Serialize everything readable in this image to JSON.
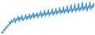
{
  "chart_data": {
    "type": "line",
    "x": [
      1,
      2,
      3,
      4,
      5,
      6,
      7,
      8,
      9,
      10,
      11,
      12,
      13,
      14,
      15,
      16,
      17,
      18,
      19,
      20,
      21,
      22,
      23,
      24,
      25,
      26,
      27,
      28,
      29,
      30,
      31,
      32,
      33,
      34,
      35,
      36,
      37,
      38,
      39,
      40,
      41,
      42,
      43,
      44,
      45,
      46,
      47,
      48,
      49,
      50,
      51,
      52,
      53,
      54,
      55,
      56,
      57,
      58,
      59,
      60,
      61,
      62,
      63,
      64,
      65,
      66,
      67,
      68,
      69,
      70,
      71,
      72,
      73,
      74,
      75,
      76,
      77,
      78,
      79,
      80,
      81,
      82,
      83,
      84,
      85,
      86,
      87,
      88,
      89,
      90,
      91,
      92,
      93,
      94,
      95,
      96,
      97,
      98,
      99,
      100
    ],
    "values": [
      5,
      10,
      8,
      18,
      15,
      25,
      22,
      30,
      28,
      40,
      33,
      45,
      38,
      42,
      50,
      36,
      48,
      44,
      55,
      40,
      52,
      46,
      58,
      42,
      50,
      48,
      60,
      45,
      55,
      50,
      62,
      47,
      58,
      52,
      65,
      49,
      60,
      55,
      66,
      50,
      62,
      57,
      70,
      52,
      63,
      58,
      72,
      55,
      65,
      60,
      74,
      56,
      66,
      62,
      76,
      58,
      68,
      63,
      78,
      60,
      70,
      65,
      80,
      62,
      72,
      66,
      82,
      63,
      74,
      68,
      85,
      64,
      75,
      70,
      88,
      66,
      76,
      72,
      90,
      68,
      78,
      73,
      92,
      70,
      80,
      74,
      95,
      72,
      82,
      76,
      93,
      70,
      84,
      78,
      96,
      74,
      85,
      80,
      92,
      78
    ],
    "color": "#3a8fd4",
    "xlim": [
      1,
      100
    ],
    "xticks": [],
    "ylim": [
      5,
      96
    ],
    "yticks": [],
    "tick_labels": false,
    "grid": false
  }
}
